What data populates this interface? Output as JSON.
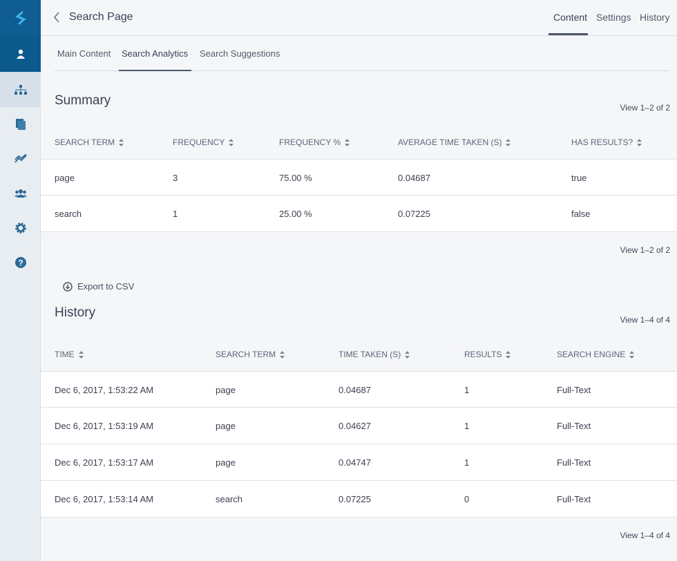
{
  "header": {
    "title": "Search Page",
    "tabs": [
      "Content",
      "Settings",
      "History"
    ]
  },
  "subtabs": [
    "Main Content",
    "Search Analytics",
    "Search Suggestions"
  ],
  "summary": {
    "title": "Summary",
    "count_top": "View 1–2 of 2",
    "count_bottom": "View 1–2 of 2",
    "columns": [
      "SEARCH TERM",
      "FREQUENCY",
      "FREQUENCY %",
      "AVERAGE TIME TAKEN (S)",
      "HAS RESULTS?"
    ],
    "rows": [
      [
        "page",
        "3",
        "75.00 %",
        "0.04687",
        "true"
      ],
      [
        "search",
        "1",
        "25.00 %",
        "0.07225",
        "false"
      ]
    ]
  },
  "export": "Export to CSV",
  "history": {
    "title": "History",
    "count_top": "View 1–4 of 4",
    "count_bottom": "View 1–4 of 4",
    "columns": [
      "TIME",
      "SEARCH TERM",
      "TIME TAKEN (S)",
      "RESULTS",
      "SEARCH ENGINE"
    ],
    "rows": [
      [
        "Dec 6, 2017, 1:53:22 AM",
        "page",
        "0.04687",
        "1",
        "Full-Text"
      ],
      [
        "Dec 6, 2017, 1:53:19 AM",
        "page",
        "0.04627",
        "1",
        "Full-Text"
      ],
      [
        "Dec 6, 2017, 1:53:17 AM",
        "page",
        "0.04747",
        "1",
        "Full-Text"
      ],
      [
        "Dec 6, 2017, 1:53:14 AM",
        "search",
        "0.07225",
        "0",
        "Full-Text"
      ]
    ]
  }
}
